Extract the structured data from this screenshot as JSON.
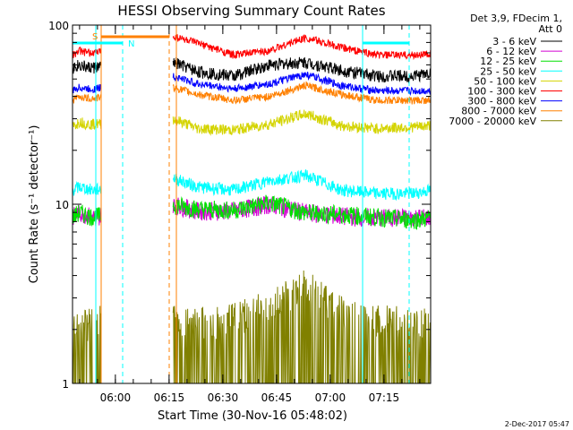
{
  "chart_data": {
    "type": "line",
    "title": "HESSI Observing Summary Count Rates",
    "xlabel": "Start Time (30-Nov-16 05:48:02)",
    "ylabel": "Count Rate (s⁻¹ detector⁻¹)",
    "yscale": "log",
    "ylim": [
      1,
      100
    ],
    "xlim_minutes_after_0548": [
      0,
      100
    ],
    "x_ticks": [
      "06:00",
      "06:15",
      "06:30",
      "06:45",
      "07:00",
      "07:15"
    ],
    "y_ticks": [
      "1",
      "10",
      "100"
    ],
    "legend_header": [
      "Det 3,9, FDecim 1,",
      "Att 0"
    ],
    "legend_placement": "right",
    "annotations": {
      "saa_label": "S",
      "night_label": "N"
    },
    "footer_date": "2-Dec-2017 05:47",
    "data_gaps_minutes": [
      [
        8,
        28
      ]
    ],
    "series": [
      {
        "name": "3 - 6 keV",
        "color": "#000000",
        "x": [
          0,
          2,
          4,
          6,
          28,
          35,
          45,
          55,
          65,
          75,
          85,
          95,
          100
        ],
        "y": [
          58,
          60,
          58,
          58,
          62,
          55,
          52,
          60,
          62,
          56,
          52,
          52,
          54
        ]
      },
      {
        "name": "6 - 12 keV",
        "color": "#d400d4",
        "x": [
          0,
          2,
          4,
          6,
          28,
          35,
          45,
          55,
          65,
          75,
          85,
          95,
          100
        ],
        "y": [
          8.5,
          9,
          8.7,
          8.5,
          10,
          9.2,
          9.2,
          10,
          9,
          8.6,
          8.4,
          8.5,
          8.5
        ]
      },
      {
        "name": "12 - 25 keV",
        "color": "#00e000",
        "x": [
          0,
          2,
          4,
          6,
          28,
          35,
          45,
          55,
          65,
          75,
          85,
          95,
          100
        ],
        "y": [
          8.5,
          9,
          8.7,
          8.5,
          10,
          9.4,
          9.3,
          10.2,
          9,
          8.8,
          8.5,
          8.2,
          8.4
        ]
      },
      {
        "name": "25 - 50 keV",
        "color": "#00ffff",
        "x": [
          0,
          2,
          4,
          6,
          28,
          35,
          45,
          55,
          65,
          75,
          85,
          95,
          100
        ],
        "y": [
          12,
          12.5,
          12.2,
          12,
          14,
          12.5,
          12,
          13.5,
          14.5,
          12,
          11.5,
          11.5,
          12
        ]
      },
      {
        "name": "50 - 100 keV",
        "color": "#d4d400",
        "x": [
          0,
          2,
          4,
          6,
          28,
          35,
          45,
          55,
          65,
          75,
          85,
          95,
          100
        ],
        "y": [
          27,
          29,
          28,
          28,
          30,
          26.5,
          26,
          28,
          32,
          27.5,
          26.5,
          27,
          27.5
        ]
      },
      {
        "name": "100 - 300 keV",
        "color": "#ff0000",
        "x": [
          0,
          2,
          4,
          6,
          28,
          35,
          45,
          55,
          65,
          75,
          85,
          95,
          100
        ],
        "y": [
          68,
          72,
          70,
          70,
          87,
          79,
          68,
          72,
          85,
          75,
          68,
          68,
          69
        ]
      },
      {
        "name": "300 - 800 keV",
        "color": "#0000ff",
        "x": [
          0,
          2,
          4,
          6,
          28,
          35,
          45,
          55,
          65,
          75,
          85,
          95,
          100
        ],
        "y": [
          43,
          45,
          44,
          44,
          52,
          47,
          44,
          47,
          53,
          46,
          43,
          43,
          43
        ]
      },
      {
        "name": "800 - 7000 keV",
        "color": "#ff8000",
        "x": [
          0,
          2,
          4,
          6,
          28,
          35,
          45,
          55,
          65,
          75,
          85,
          95,
          100
        ],
        "y": [
          38,
          40,
          39,
          39,
          45,
          41,
          38,
          40,
          46,
          41,
          38,
          38,
          38
        ]
      },
      {
        "name": "7000 - 20000 keV",
        "color": "#808000",
        "x": [
          0,
          2,
          4,
          6,
          28,
          35,
          45,
          55,
          65,
          75,
          85,
          95,
          100
        ],
        "y": [
          1.9,
          2,
          1.9,
          2,
          2,
          1.9,
          2,
          2.4,
          3.1,
          2.2,
          2,
          1.9,
          2
        ]
      }
    ]
  }
}
